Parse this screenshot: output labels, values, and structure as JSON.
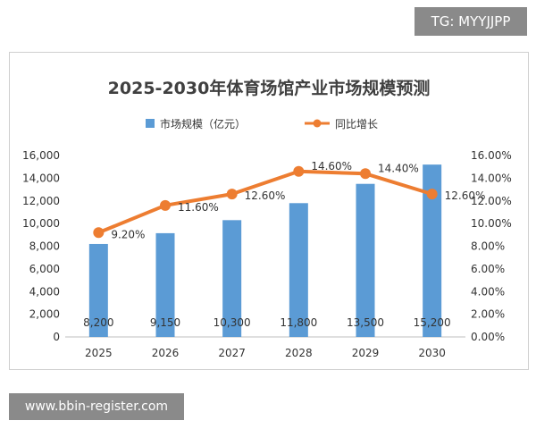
{
  "overlays": {
    "top_tag": "TG: MYYJJPP",
    "bottom_tag": "www.bbin-register.com"
  },
  "colors": {
    "bar": "#5b9bd5",
    "line": "#ed7d31",
    "text": "#333333",
    "gridline": "#d9d9d9"
  },
  "chart_data": {
    "type": "bar",
    "title": "2025-2030年体育场馆产业市场规模预测",
    "categories": [
      "2025",
      "2026",
      "2027",
      "2028",
      "2029",
      "2030"
    ],
    "series": [
      {
        "name": "市场规模（亿元）",
        "kind": "bar",
        "axis": "left",
        "values": [
          8200,
          9150,
          10300,
          11800,
          13500,
          15200
        ],
        "labels": [
          "8,200",
          "9,150",
          "10,300",
          "11,800",
          "13,500",
          "15,200"
        ]
      },
      {
        "name": "同比增长",
        "kind": "line",
        "axis": "right",
        "values": [
          9.2,
          11.6,
          12.6,
          14.6,
          14.4,
          12.6
        ],
        "labels": [
          "9.20%",
          "11.60%",
          "12.60%",
          "14.60%",
          "14.40%",
          "12.60%"
        ]
      }
    ],
    "y_left": {
      "ylim": [
        0,
        16000
      ],
      "ticks": [
        "0",
        "2,000",
        "4,000",
        "6,000",
        "8,000",
        "10,000",
        "12,000",
        "14,000",
        "16,000"
      ]
    },
    "y_right": {
      "ylim": [
        0,
        16
      ],
      "ticks": [
        "0.00%",
        "2.00%",
        "4.00%",
        "6.00%",
        "8.00%",
        "10.00%",
        "12.00%",
        "14.00%",
        "16.00%"
      ]
    },
    "xlabel": "",
    "ylabel": "",
    "legend_position": "top",
    "grid": false
  }
}
